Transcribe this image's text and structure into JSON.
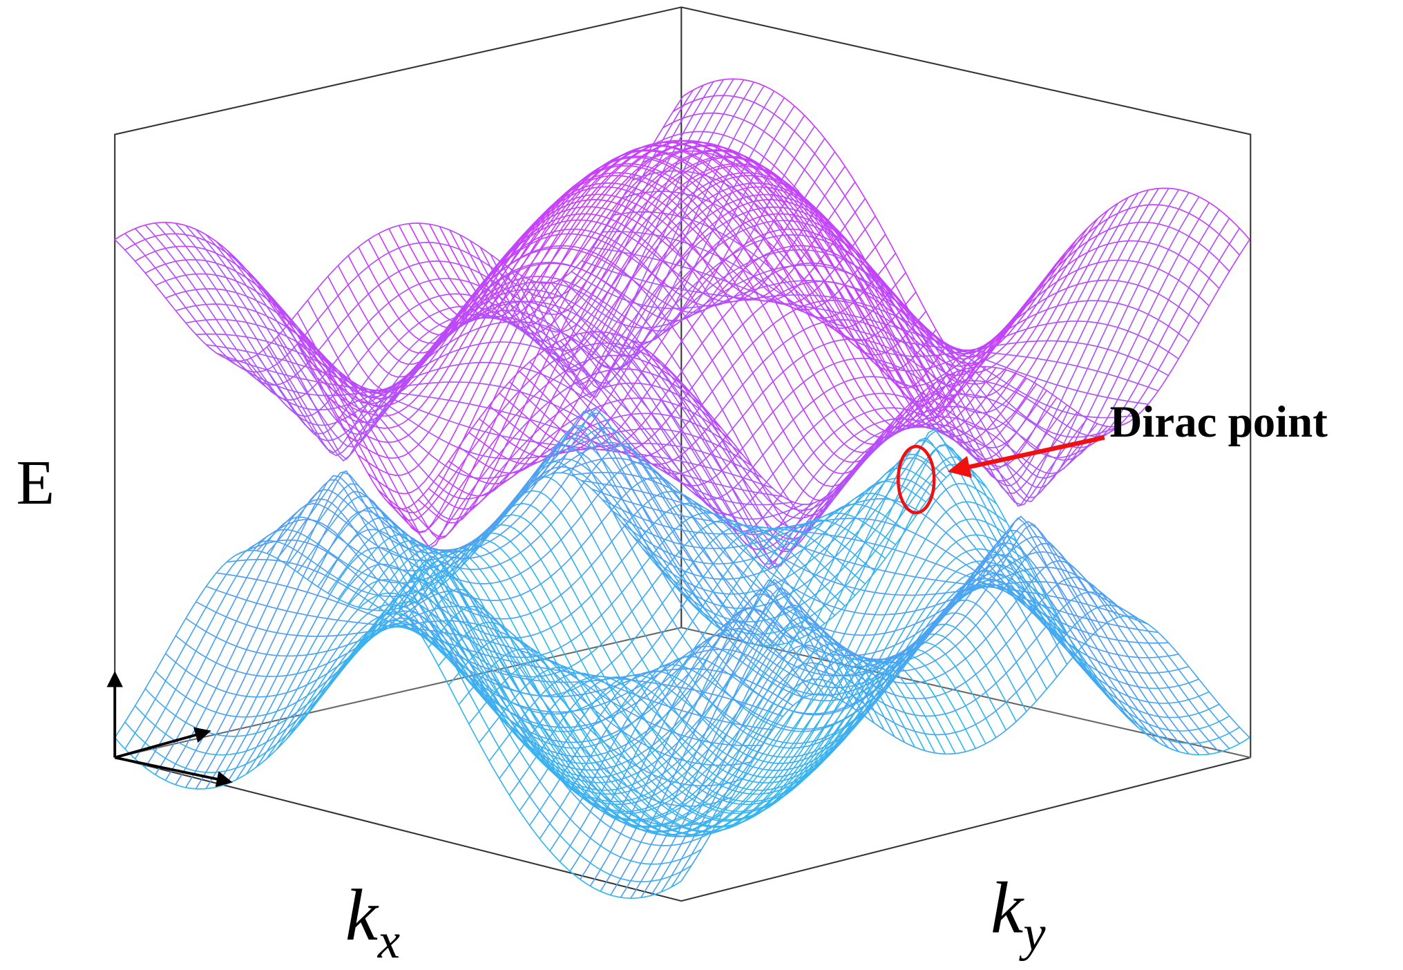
{
  "labels": {
    "energy": "E",
    "kx": {
      "base": "k",
      "sub": "x"
    },
    "ky": {
      "base": "k",
      "sub": "y"
    }
  },
  "annotation": "Dirac point"
}
